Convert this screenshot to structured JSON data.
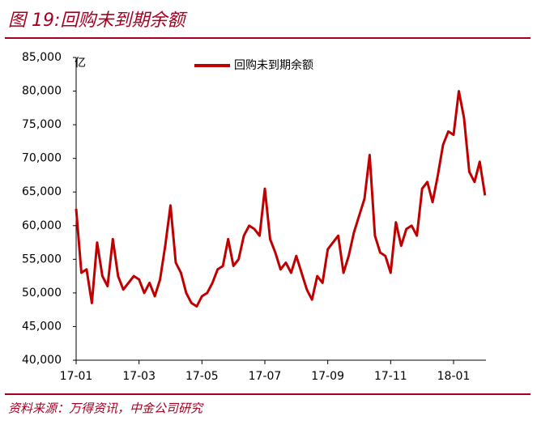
{
  "chart_data": {
    "type": "line",
    "title": "图 19:回购未到期余额",
    "source": "资料来源：万得资讯，中金公司研究",
    "unit": "亿",
    "categories": [
      "17-01",
      null,
      null,
      null,
      null,
      null,
      null,
      null,
      null,
      null,
      null,
      null,
      "17-03",
      null,
      null,
      null,
      null,
      null,
      null,
      null,
      null,
      null,
      null,
      null,
      "17-05",
      null,
      null,
      null,
      null,
      null,
      null,
      null,
      null,
      null,
      null,
      null,
      "17-07",
      null,
      null,
      null,
      null,
      null,
      null,
      null,
      null,
      null,
      null,
      null,
      "17-09",
      null,
      null,
      null,
      null,
      null,
      null,
      null,
      null,
      null,
      null,
      null,
      "17-11",
      null,
      null,
      null,
      null,
      null,
      null,
      null,
      null,
      null,
      null,
      null,
      "18-01",
      null,
      null,
      null,
      null,
      null,
      null
    ],
    "series": [
      {
        "name": "回购未到期余额",
        "color": "#c00000",
        "values": [
          62500,
          53000,
          53500,
          48500,
          57500,
          52500,
          51000,
          58000,
          52500,
          50500,
          51500,
          52500,
          52000,
          50000,
          51500,
          49500,
          52000,
          57000,
          63000,
          54500,
          53000,
          50000,
          48500,
          48000,
          49500,
          50000,
          51500,
          53500,
          54000,
          58000,
          54000,
          55000,
          58500,
          60000,
          59500,
          58500,
          65500,
          58000,
          56000,
          53500,
          54500,
          53000,
          55500,
          53000,
          50500,
          49000,
          52500,
          51500,
          56500,
          57500,
          58500,
          53000,
          55500,
          59000,
          61500,
          64000,
          70500,
          58500,
          56000,
          55500,
          53000,
          60500,
          57000,
          59500,
          60000,
          58500,
          65500,
          66500,
          63500,
          67500,
          72000,
          74000,
          73500,
          80000,
          76000,
          68000,
          66500,
          69500,
          64500
        ]
      }
    ],
    "ylim": [
      40000,
      85000
    ],
    "yticks": [
      {
        "value": 40000,
        "label": "40,000"
      },
      {
        "value": 45000,
        "label": "45,000"
      },
      {
        "value": 50000,
        "label": "50,000"
      },
      {
        "value": 55000,
        "label": "55,000"
      },
      {
        "value": 60000,
        "label": "60,000"
      },
      {
        "value": 65000,
        "label": "65,000"
      },
      {
        "value": 70000,
        "label": "70,000"
      },
      {
        "value": 75000,
        "label": "75,000"
      },
      {
        "value": 80000,
        "label": "80,000"
      },
      {
        "value": 85000,
        "label": "85,000"
      }
    ],
    "legend": "top"
  }
}
